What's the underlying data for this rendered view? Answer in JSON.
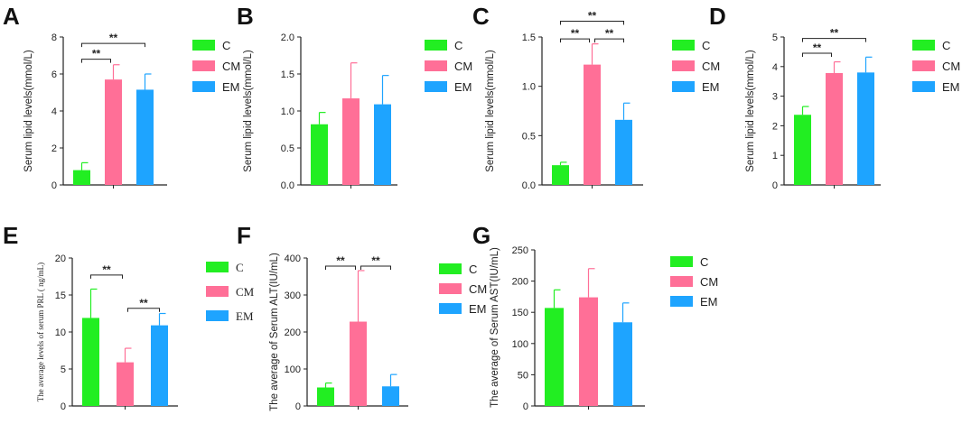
{
  "colors": {
    "C": "#22ee22",
    "CM": "#ff6f97",
    "EM": "#1ea4ff",
    "axis": "#222222"
  },
  "chart_data": [
    {
      "id": "A",
      "panel_label": "A",
      "type": "bar",
      "categories": [
        "C",
        "CM",
        "EM"
      ],
      "values": [
        0.8,
        5.7,
        5.15
      ],
      "errors": [
        0.4,
        0.8,
        0.85
      ],
      "ylabel": "Serum lipid levels(mmol/L)",
      "ylim": [
        0,
        8
      ],
      "yticks": [
        0,
        2,
        4,
        6,
        8
      ],
      "ytick_labels": [
        "0",
        "2",
        "4",
        "6",
        "8"
      ],
      "legend": [
        "C",
        "CM",
        "EM"
      ],
      "significance": [
        {
          "from": 0,
          "to": 1,
          "label": "**",
          "y": 6.8
        },
        {
          "from": 0,
          "to": 2,
          "label": "**",
          "y": 7.65
        }
      ]
    },
    {
      "id": "B",
      "panel_label": "B",
      "type": "bar",
      "categories": [
        "C",
        "CM",
        "EM"
      ],
      "values": [
        0.82,
        1.17,
        1.09
      ],
      "errors": [
        0.16,
        0.48,
        0.39
      ],
      "ylabel": "Serum lipid levels(mmol/L)",
      "ylim": [
        0,
        2
      ],
      "yticks": [
        0,
        0.5,
        1,
        1.5,
        2
      ],
      "ytick_labels": [
        "0.0",
        "0.5",
        "1.0",
        "1.5",
        "2.0"
      ],
      "legend": [
        "C",
        "CM",
        "EM"
      ],
      "significance": []
    },
    {
      "id": "C",
      "panel_label": "C",
      "type": "bar",
      "categories": [
        "C",
        "CM",
        "EM"
      ],
      "values": [
        0.2,
        1.22,
        0.66
      ],
      "errors": [
        0.03,
        0.21,
        0.17
      ],
      "ylabel": "Serum lipid levels(mmol/L)",
      "ylim": [
        0,
        1.5
      ],
      "yticks": [
        0,
        0.5,
        1,
        1.5
      ],
      "ytick_labels": [
        "0.0",
        "0.5",
        "1.0",
        "1.5"
      ],
      "legend": [
        "C",
        "CM",
        "EM"
      ],
      "significance": [
        {
          "from": 0,
          "to": 1,
          "label": "**",
          "y": 1.48
        },
        {
          "from": 1,
          "to": 2,
          "label": "**",
          "y": 1.48
        },
        {
          "from": 0,
          "to": 2,
          "label": "**",
          "y": 1.66
        }
      ]
    },
    {
      "id": "D",
      "panel_label": "D",
      "type": "bar",
      "categories": [
        "C",
        "CM",
        "EM"
      ],
      "values": [
        2.37,
        3.78,
        3.8
      ],
      "errors": [
        0.28,
        0.38,
        0.52
      ],
      "ylabel": "Serum lipid levels(mmol/L)",
      "ylim": [
        0,
        5
      ],
      "yticks": [
        0,
        1,
        2,
        3,
        4,
        5
      ],
      "ytick_labels": [
        "0",
        "1",
        "2",
        "3",
        "4",
        "5"
      ],
      "legend": [
        "C",
        "CM",
        "EM"
      ],
      "significance": [
        {
          "from": 0,
          "to": 1,
          "label": "**",
          "y": 4.45
        },
        {
          "from": 0,
          "to": 2,
          "label": "**",
          "y": 4.95
        }
      ]
    },
    {
      "id": "E",
      "panel_label": "E",
      "type": "bar",
      "categories": [
        "C",
        "CM",
        "EM"
      ],
      "values": [
        11.9,
        5.9,
        10.9
      ],
      "errors": [
        3.9,
        1.9,
        1.6
      ],
      "ylabel": "The average levels of serum PRL ( ng/mL)",
      "ylim": [
        0,
        20
      ],
      "yticks": [
        0,
        5,
        10,
        15,
        20
      ],
      "ytick_labels": [
        "0",
        "5",
        "10",
        "15",
        "20"
      ],
      "legend": [
        "C",
        "CM",
        "EM"
      ],
      "serif": true,
      "significance": [
        {
          "from": 0,
          "to": 1,
          "label": "**",
          "y": 17.7
        },
        {
          "from": 1,
          "to": 2,
          "label": "**",
          "y": 13.2
        }
      ]
    },
    {
      "id": "F",
      "panel_label": "F",
      "type": "bar",
      "categories": [
        "C",
        "CM",
        "EM"
      ],
      "values": [
        50,
        228,
        53
      ],
      "errors": [
        12,
        138,
        32
      ],
      "ylabel": "The average of Serum ALT(IU/mL)",
      "ylim": [
        0,
        400
      ],
      "yticks": [
        0,
        100,
        200,
        300,
        400
      ],
      "ytick_labels": [
        "0",
        "100",
        "200",
        "300",
        "400"
      ],
      "legend": [
        "C",
        "CM",
        "EM"
      ],
      "significance": [
        {
          "from": 0,
          "to": 1,
          "label": "**",
          "y": 378
        },
        {
          "from": 1,
          "to": 2,
          "label": "**",
          "y": 378
        }
      ]
    },
    {
      "id": "G",
      "panel_label": "G",
      "type": "bar",
      "categories": [
        "C",
        "CM",
        "EM"
      ],
      "values": [
        157,
        174,
        134
      ],
      "errors": [
        29,
        46,
        31
      ],
      "ylabel": "The average of Serum AST(IU/mL)",
      "ylim": [
        0,
        250
      ],
      "yticks": [
        0,
        50,
        100,
        150,
        200,
        250
      ],
      "ytick_labels": [
        "0",
        "50",
        "100",
        "150",
        "200",
        "250"
      ],
      "legend": [
        "C",
        "CM",
        "EM"
      ],
      "significance": []
    }
  ]
}
